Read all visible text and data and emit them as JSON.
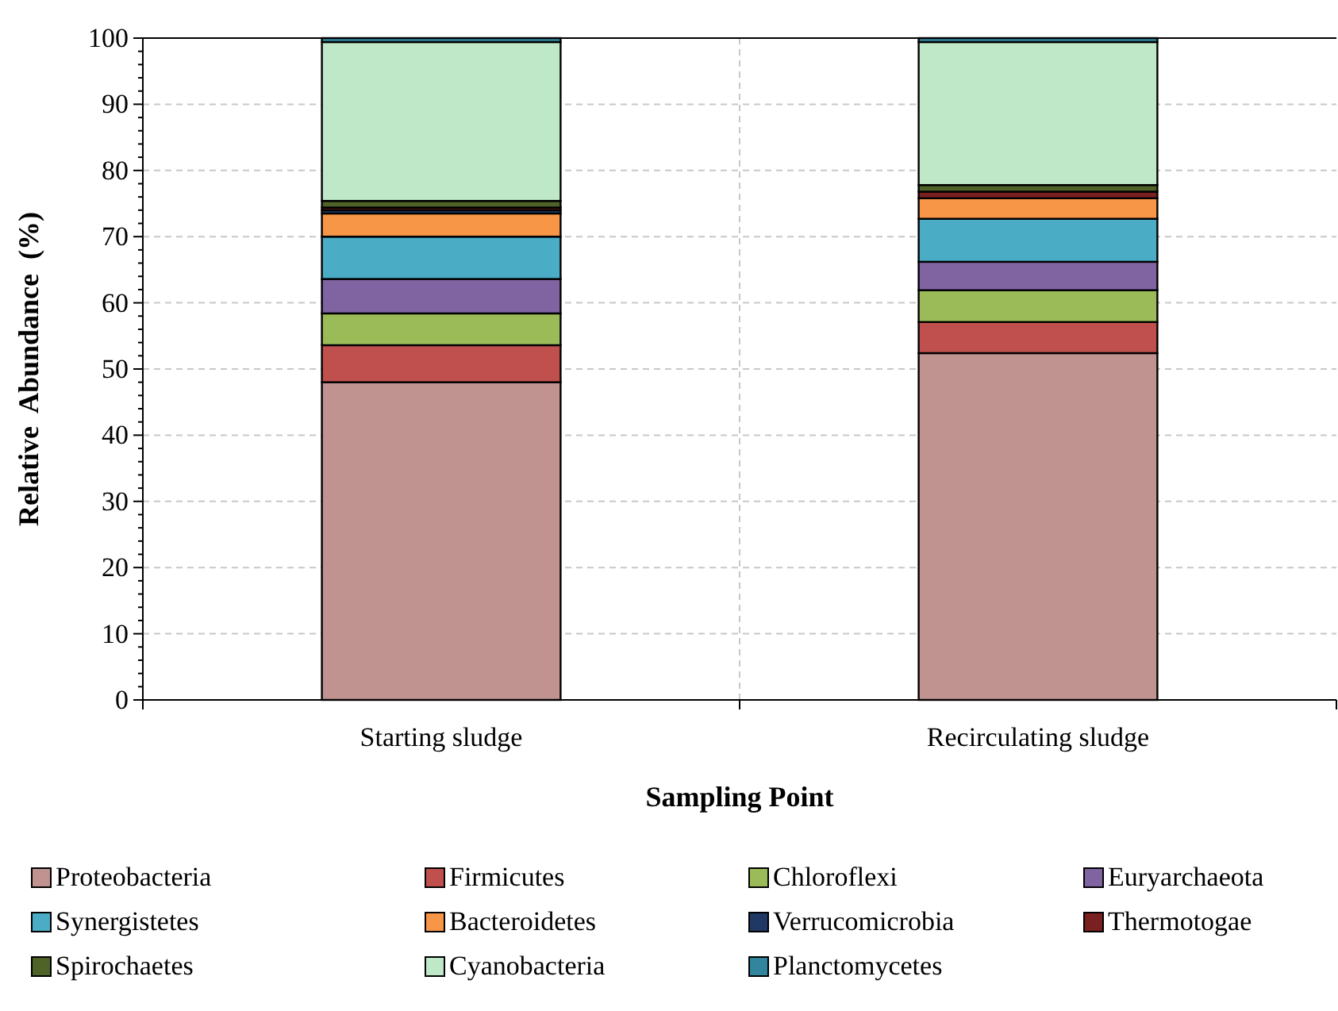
{
  "chart_data": {
    "type": "bar",
    "stacked": true,
    "xlabel": "Sampling Point",
    "ylabel": "Relative  Abundance  (%)",
    "categories": [
      "Starting sludge",
      "Recirculating sludge"
    ],
    "ylim": [
      0,
      100
    ],
    "yticks": [
      0,
      10,
      20,
      30,
      40,
      50,
      60,
      70,
      80,
      90,
      100
    ],
    "grid": true,
    "legend": "bottom",
    "series": [
      {
        "name": "Proteobacteria",
        "color": "#c09391",
        "values": [
          48.0,
          52.4
        ]
      },
      {
        "name": "Firmicutes",
        "color": "#c0504d",
        "values": [
          5.6,
          4.7
        ]
      },
      {
        "name": "Chloroflexi",
        "color": "#9bbb59",
        "values": [
          4.8,
          4.8
        ]
      },
      {
        "name": "Euryarchaeota",
        "color": "#8064a2",
        "values": [
          5.2,
          4.3
        ]
      },
      {
        "name": "Synergistetes",
        "color": "#4bacc6",
        "values": [
          6.4,
          6.5
        ]
      },
      {
        "name": "Bacteroidetes",
        "color": "#f79646",
        "values": [
          3.5,
          3.1
        ]
      },
      {
        "name": "Verrucomicrobia",
        "color": "#1f3864",
        "values": [
          0.5,
          null
        ]
      },
      {
        "name": "Thermotogae",
        "color": "#7b2020",
        "values": [
          0.4,
          1.0
        ]
      },
      {
        "name": "Spirochaetes",
        "color": "#4f6228",
        "values": [
          1.0,
          1.0
        ]
      },
      {
        "name": "Cyanobacteria",
        "color": "#bfe8c8",
        "values": [
          24.0,
          21.6
        ]
      },
      {
        "name": "Planctomycetes",
        "color": "#31859c",
        "values": [
          0.6,
          0.6
        ]
      }
    ]
  }
}
